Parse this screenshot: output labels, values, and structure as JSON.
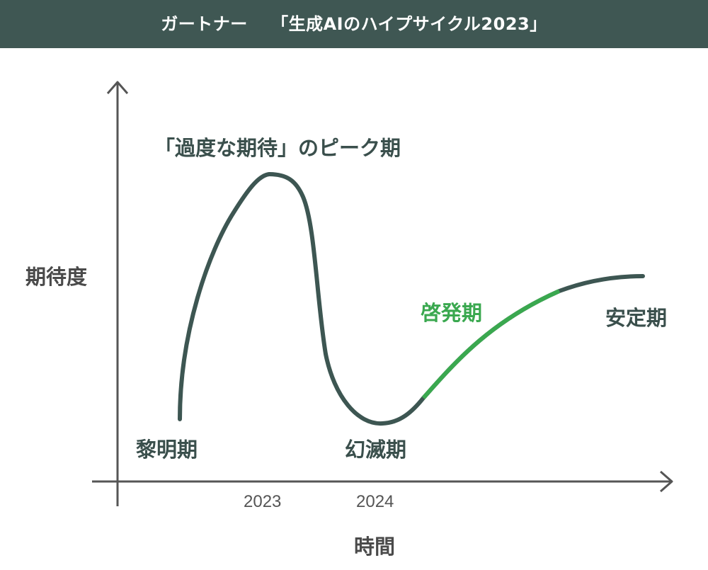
{
  "header": {
    "title": "ガートナー　 「生成AIのハイプサイクル2023」"
  },
  "axes": {
    "y_label": "期待度",
    "x_label": "時間",
    "x_ticks": [
      "2023",
      "2024"
    ]
  },
  "phases": {
    "innovation_trigger": "黎明期",
    "peak": "「過度な期待」のピーク期",
    "trough": "幻滅期",
    "slope": "啓発期",
    "plateau": "安定期"
  },
  "colors": {
    "header_bg": "#3f5753",
    "curve": "#3d5652",
    "slope_highlight": "#3aa84f",
    "axis": "#555555"
  }
}
